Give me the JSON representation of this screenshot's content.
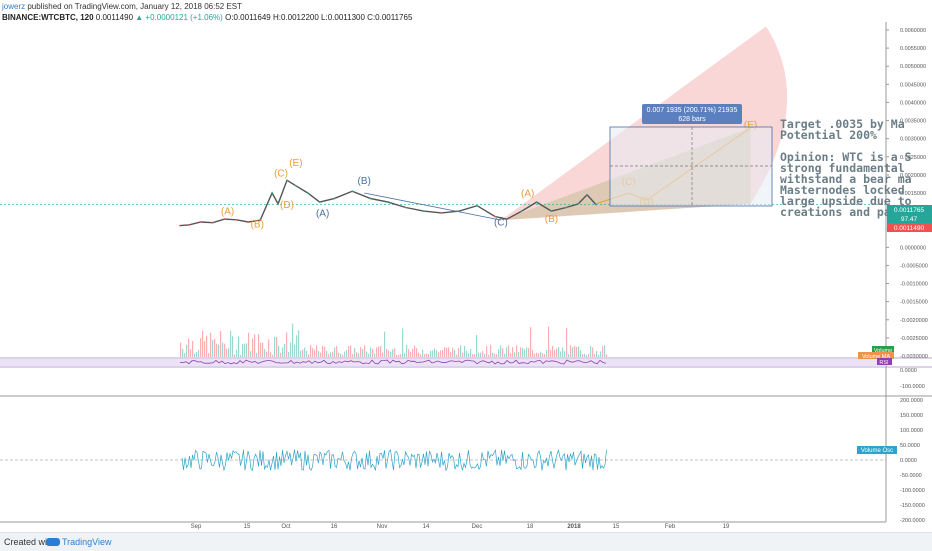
{
  "header": {
    "username": "jowerz",
    "published": "published on TradingView.com, January 12, 2018 06:52 EST"
  },
  "symbol_bar": {
    "symbol": "BINANCE:WTCBTC, 120",
    "last": "0.0011490",
    "change": "+0.0000121 (+1.06%)",
    "open": "O:0.0011649",
    "high": "H:0.0012200",
    "low": "L:0.0011300",
    "close": "C:0.0011765"
  },
  "footer": {
    "created_with": "Created with",
    "brand": "TradingView"
  },
  "colors": {
    "up": "#26a69a",
    "down": "#ef5350",
    "wave_orange": "#e8a033",
    "wave_blue": "#4a6fa5",
    "rsi": "#8e3fb0",
    "osc": "#2fa3c8",
    "fan_red": "#f28b8b",
    "fan_green": "#9fd38a"
  },
  "annotation": {
    "lines": [
      "Target .0035 by Ma",
      "Potential 200%",
      "",
      "Opinion: WTC is a S",
      "strong fundamental",
      "withstand a bear ma",
      "Masternodes locked",
      "large upside due to",
      "creations and partn"
    ]
  },
  "measure_box": {
    "line1": "0.007 1935 (200.71%) 21935",
    "line2": "628 bars"
  },
  "price_labels": {
    "current": "0.0011765",
    "rsi": "97.47",
    "low": "0.0011490"
  },
  "indicator_labels": {
    "volume": "Volume",
    "volume_ma": "Volume MA",
    "rsi": "RSI",
    "volume_osc": "Volume Osc"
  },
  "chart_data": {
    "type": "line",
    "title": "",
    "price_axis": [
      "0.0060000",
      "0.0055000",
      "0.0050000",
      "0.0045000",
      "0.0040000",
      "0.0035000",
      "0.0030000",
      "0.0025000",
      "0.0020000",
      "0.0015000",
      "0.0010000",
      "0.0005000",
      "0.0000000",
      "-0.0005000",
      "-0.0010000",
      "-0.0015000",
      "-0.0020000",
      "-0.0025000",
      "-0.0030000"
    ],
    "price_range": [
      -0.003,
      0.006
    ],
    "rsi_axis": [
      "0.0000",
      "-100.0000"
    ],
    "osc_axis": [
      "200.0000",
      "150.0000",
      "100.0000",
      "50.0000",
      "0.0000",
      "-50.0000",
      "-100.0000",
      "-150.0000",
      "-200.0000"
    ],
    "osc_range": [
      -200,
      200
    ],
    "x_ticks": [
      "Sep",
      "15",
      "Oct",
      "16",
      "Nov",
      "14",
      "Dec",
      "18",
      "2018",
      "15",
      "Feb",
      "19"
    ],
    "price_series": [
      {
        "date": "2017-08-25",
        "close": 0.0006
      },
      {
        "date": "2017-08-28",
        "close": 0.00062
      },
      {
        "date": "2017-09-01",
        "close": 0.0007
      },
      {
        "date": "2017-09-05",
        "close": 0.00068
      },
      {
        "date": "2017-09-09",
        "close": 0.00078
      },
      {
        "date": "2017-09-13",
        "close": 0.00076
      },
      {
        "date": "2017-09-17",
        "close": 0.0007
      },
      {
        "date": "2017-09-21",
        "close": 0.00075
      },
      {
        "date": "2017-09-25",
        "close": 0.0015
      },
      {
        "date": "2017-09-27",
        "close": 0.0012
      },
      {
        "date": "2017-09-30",
        "close": 0.00185
      },
      {
        "date": "2017-10-03",
        "close": 0.0017
      },
      {
        "date": "2017-10-07",
        "close": 0.0015
      },
      {
        "date": "2017-10-11",
        "close": 0.00125
      },
      {
        "date": "2017-10-16",
        "close": 0.00135
      },
      {
        "date": "2017-10-22",
        "close": 0.00155
      },
      {
        "date": "2017-10-28",
        "close": 0.00135
      },
      {
        "date": "2017-11-03",
        "close": 0.00125
      },
      {
        "date": "2017-11-09",
        "close": 0.0011
      },
      {
        "date": "2017-11-15",
        "close": 0.001
      },
      {
        "date": "2017-11-21",
        "close": 0.00095
      },
      {
        "date": "2017-11-27",
        "close": 0.001
      },
      {
        "date": "2017-12-03",
        "close": 0.00115
      },
      {
        "date": "2017-12-09",
        "close": 0.00085
      },
      {
        "date": "2017-12-13",
        "close": 0.00078
      },
      {
        "date": "2017-12-18",
        "close": 0.001
      },
      {
        "date": "2017-12-23",
        "close": 0.00125
      },
      {
        "date": "2017-12-28",
        "close": 0.001
      },
      {
        "date": "2018-01-02",
        "close": 0.0011
      },
      {
        "date": "2018-01-06",
        "close": 0.0012
      },
      {
        "date": "2018-01-09",
        "close": 0.00145
      },
      {
        "date": "2018-01-12",
        "close": 0.00118
      }
    ],
    "wave_labels": [
      {
        "text": "(A)",
        "date": "2017-09-10",
        "price": 0.0009,
        "color": "orange"
      },
      {
        "text": "(B)",
        "date": "2017-09-20",
        "price": 0.00055,
        "color": "orange"
      },
      {
        "text": "(C)",
        "date": "2017-09-28",
        "price": 0.00195,
        "color": "orange"
      },
      {
        "text": "(D)",
        "date": "2017-09-30",
        "price": 0.00108,
        "color": "orange"
      },
      {
        "text": "(E)",
        "date": "2017-10-03",
        "price": 0.00225,
        "color": "orange"
      },
      {
        "text": "(A)",
        "date": "2017-10-12",
        "price": 0.00085,
        "color": "blue"
      },
      {
        "text": "(B)",
        "date": "2017-10-26",
        "price": 0.00175,
        "color": "blue"
      },
      {
        "text": "(C)",
        "date": "2017-12-11",
        "price": 0.0006,
        "color": "blue"
      },
      {
        "text": "(A)",
        "date": "2017-12-20",
        "price": 0.0014,
        "color": "orange"
      },
      {
        "text": "(B)",
        "date": "2017-12-28",
        "price": 0.0007,
        "color": "orange"
      },
      {
        "text": "(C)",
        "date": "2018-01-23",
        "price": 0.00172,
        "color": "orange"
      },
      {
        "text": "(D)",
        "date": "2018-01-29",
        "price": 0.00118,
        "color": "orange"
      },
      {
        "text": "(E)",
        "date": "2018-03-05",
        "price": 0.0033,
        "color": "orange"
      }
    ],
    "projection": [
      {
        "date": "2018-01-12",
        "price": 0.0012
      },
      {
        "date": "2018-01-23",
        "price": 0.0015
      },
      {
        "date": "2018-01-29",
        "price": 0.0013
      },
      {
        "date": "2018-03-05",
        "price": 0.0033
      }
    ],
    "trendline_b": [
      {
        "date": "2017-10-26",
        "price": 0.0015
      },
      {
        "date": "2017-12-11",
        "price": 0.00075
      }
    ]
  }
}
